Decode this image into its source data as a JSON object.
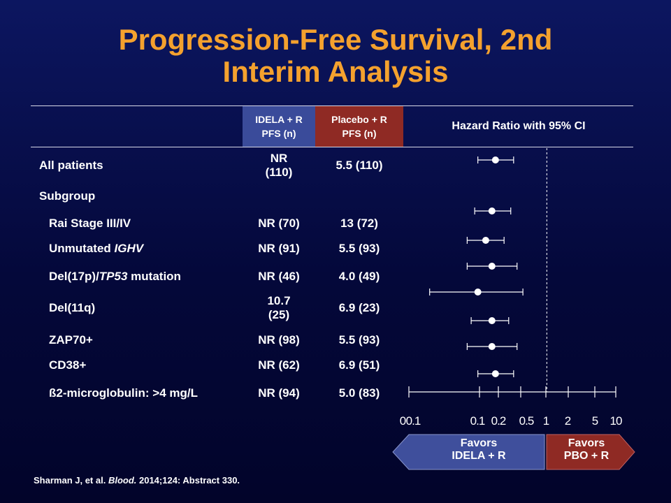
{
  "title_line1": "Progression-Free Survival, 2nd",
  "title_line2": "Interim Analysis",
  "headers": {
    "idela": "IDELA + R\nPFS (n)",
    "placebo": "Placebo + R\nPFS (n)",
    "hr": "Hazard Ratio with 95% CI"
  },
  "colors": {
    "title": "#f4a12e",
    "idela_header": "#3a4b9a",
    "placebo_header": "#8f2a24",
    "favors_idela_arrow": "#3f4f9c",
    "favors_pbo_arrow": "#8f2a24"
  },
  "subgroup_label": "Subgroup",
  "rows": [
    {
      "label": "All patients",
      "label_italic": "",
      "label_after": "",
      "idela": "NR\n(110)",
      "placebo": "5.5 (110)"
    },
    {
      "label": "Rai Stage III/IV",
      "label_italic": "",
      "label_after": "",
      "idela": "NR (70)",
      "placebo": "13 (72)"
    },
    {
      "label": "Unmutated ",
      "label_italic": "IGHV",
      "label_after": "",
      "idela": "NR (91)",
      "placebo": "5.5 (93)"
    },
    {
      "label": "Del(17p)/",
      "label_italic": "TP53",
      "label_after": " mutation",
      "idela": "NR (46)",
      "placebo": "4.0 (49)"
    },
    {
      "label": "Del(11q)",
      "label_italic": "",
      "label_after": "",
      "idela": "10.7\n(25)",
      "placebo": "6.9 (23)"
    },
    {
      "label": "ZAP70+",
      "label_italic": "",
      "label_after": "",
      "idela": "NR (98)",
      "placebo": "5.5 (93)"
    },
    {
      "label": "CD38+",
      "label_italic": "",
      "label_after": "",
      "idela": "NR (62)",
      "placebo": "6.9 (51)"
    },
    {
      "label": "ß2-microglobulin: >4 mg/L",
      "label_italic": "",
      "label_after": "",
      "idela": "NR (94)",
      "placebo": "5.0 (83)"
    }
  ],
  "chart_data": {
    "type": "forest",
    "x_scale": "log",
    "reference_line": 1,
    "xticks": [
      "0",
      "0.1",
      "0.1",
      "0.2",
      "0.5",
      "1",
      "2",
      "5",
      "10"
    ],
    "series": [
      {
        "hr": 0.18,
        "ci": [
          0.1,
          0.33
        ]
      },
      {
        "hr": 0.16,
        "ci": [
          0.09,
          0.3
        ]
      },
      {
        "hr": 0.13,
        "ci": [
          0.07,
          0.24
        ]
      },
      {
        "hr": 0.16,
        "ci": [
          0.07,
          0.37
        ]
      },
      {
        "hr": 0.1,
        "ci": [
          0.02,
          0.45
        ]
      },
      {
        "hr": 0.16,
        "ci": [
          0.08,
          0.28
        ]
      },
      {
        "hr": 0.16,
        "ci": [
          0.07,
          0.37
        ]
      },
      {
        "hr": 0.18,
        "ci": [
          0.1,
          0.33
        ]
      }
    ]
  },
  "favors_idela": "Favors\nIDELA + R",
  "favors_pbo": "Favors\nPBO + R",
  "citation": {
    "authors": "Sharman J, et al. ",
    "journal": "Blood.",
    "rest": " 2014;124: Abstract 330."
  }
}
